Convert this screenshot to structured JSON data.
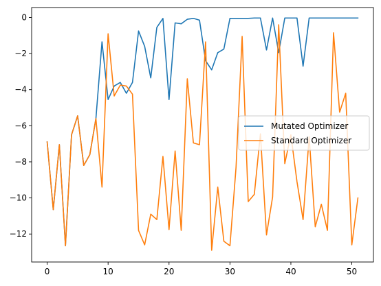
{
  "chart_data": {
    "type": "line",
    "title": "",
    "xlabel": "",
    "ylabel": "",
    "xlim": [
      -2.55,
      53.55
    ],
    "ylim": [
      -13.55,
      0.55
    ],
    "xticks": [
      0,
      10,
      20,
      30,
      40,
      50
    ],
    "yticks": [
      0,
      -2,
      -4,
      -6,
      -8,
      -10,
      -12
    ],
    "grid": false,
    "legend": {
      "position": "center-right",
      "entries": [
        "Mutated Optimizer",
        "Standard Optimizer"
      ]
    },
    "x": [
      0,
      1,
      2,
      3,
      4,
      5,
      6,
      7,
      8,
      9,
      10,
      11,
      12,
      13,
      14,
      15,
      16,
      17,
      18,
      19,
      20,
      21,
      22,
      23,
      24,
      25,
      26,
      27,
      28,
      29,
      30,
      31,
      32,
      33,
      34,
      35,
      36,
      37,
      38,
      39,
      40,
      41,
      42,
      43,
      44,
      45,
      46,
      47,
      48,
      49,
      50,
      51
    ],
    "series": [
      {
        "name": "Mutated Optimizer",
        "color": "#1f77b4",
        "values": [
          -6.9,
          -10.65,
          -7.05,
          -12.65,
          -6.5,
          -5.45,
          -8.2,
          -7.6,
          -5.6,
          -1.35,
          -4.55,
          -3.8,
          -3.6,
          -4.2,
          -3.6,
          -0.75,
          -1.6,
          -3.35,
          -0.55,
          -0.05,
          -4.55,
          -0.3,
          -0.35,
          -0.1,
          -0.05,
          -0.15,
          -2.4,
          -2.9,
          -1.95,
          -1.75,
          -0.05,
          -0.05,
          -0.05,
          -0.05,
          -0.03,
          -0.03,
          -1.8,
          -0.03,
          -1.95,
          -0.03,
          -0.03,
          -0.03,
          -2.7,
          -0.03,
          -0.03,
          -0.03,
          -0.03,
          -0.03,
          -0.03,
          -0.03,
          -0.03,
          -0.03
        ]
      },
      {
        "name": "Standard Optimizer",
        "color": "#ff7f0e",
        "values": [
          -6.9,
          -10.65,
          -7.05,
          -12.65,
          -6.5,
          -5.45,
          -8.2,
          -7.6,
          -5.6,
          -9.4,
          -0.9,
          -4.35,
          -3.75,
          -3.8,
          -4.25,
          -11.8,
          -12.6,
          -10.9,
          -11.2,
          -7.7,
          -11.75,
          -7.4,
          -11.8,
          -3.4,
          -6.95,
          -7.05,
          -1.35,
          -12.9,
          -9.4,
          -12.4,
          -12.65,
          -8.3,
          -1.05,
          -10.2,
          -9.8,
          -6.45,
          -12.05,
          -9.95,
          -0.4,
          -8.1,
          -6.5,
          -9.1,
          -11.2,
          -6.6,
          -11.6,
          -10.35,
          -11.8,
          -0.85,
          -5.25,
          -4.2,
          -12.6,
          -10.0
        ]
      }
    ]
  }
}
